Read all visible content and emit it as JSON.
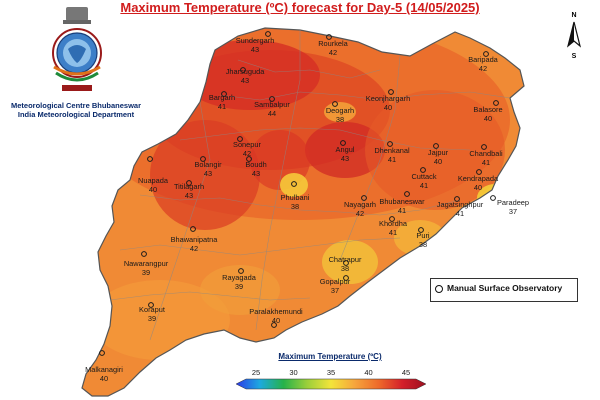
{
  "title": "Maximum Temperature (ºC) forecast for Day-5 (14/05/2025)",
  "organization": {
    "line1": "Meteorological Centre Bhubaneswar",
    "line2": "India Meteorological Department"
  },
  "north_arrow": {
    "n": "N",
    "s": "S"
  },
  "legend": {
    "observatory_label": "Manual Surface Observatory"
  },
  "colorbar": {
    "title": "Maximum Temperature (ºC)",
    "ticks": [
      "25",
      "30",
      "35",
      "40",
      "45"
    ],
    "colors": [
      "#2b39e8",
      "#1da9e0",
      "#26b24a",
      "#9ccf3a",
      "#f3e43a",
      "#f6a53c",
      "#ee6a2a",
      "#d4202a",
      "#9c1020"
    ]
  },
  "stations": [
    {
      "name": "Sundergarh",
      "temp": "43"
    },
    {
      "name": "Rourkela",
      "temp": "42"
    },
    {
      "name": "Jharsuguda",
      "temp": "43"
    },
    {
      "name": "Bargarh",
      "temp": "41"
    },
    {
      "name": "Sambalpur",
      "temp": "44"
    },
    {
      "name": "Deogarh",
      "temp": "38"
    },
    {
      "name": "Keonjhargarh",
      "temp": "40"
    },
    {
      "name": "Baripada",
      "temp": "42"
    },
    {
      "name": "Balasore",
      "temp": "40"
    },
    {
      "name": "Sonepur",
      "temp": "42"
    },
    {
      "name": "Angul",
      "temp": "43"
    },
    {
      "name": "Dhenkanal",
      "temp": "41"
    },
    {
      "name": "Jajpur",
      "temp": "40"
    },
    {
      "name": "Chandbali",
      "temp": "41"
    },
    {
      "name": "Bolangir",
      "temp": "43"
    },
    {
      "name": "Boudh",
      "temp": "43"
    },
    {
      "name": "Cuttack",
      "temp": "41"
    },
    {
      "name": "Kendrapada",
      "temp": "40"
    },
    {
      "name": "Nuapada",
      "temp": "40"
    },
    {
      "name": "Titilagarh",
      "temp": "43"
    },
    {
      "name": "Phulbani",
      "temp": "38"
    },
    {
      "name": "Nayagarh",
      "temp": "42"
    },
    {
      "name": "Bhubaneswar",
      "temp": "41"
    },
    {
      "name": "Jagatsinghpur",
      "temp": "41"
    },
    {
      "name": "Paradeep",
      "temp": "37"
    },
    {
      "name": "Khordha",
      "temp": "41"
    },
    {
      "name": "Puri",
      "temp": "38"
    },
    {
      "name": "Bhawanipatna",
      "temp": "42"
    },
    {
      "name": "Nawarangpur",
      "temp": "39"
    },
    {
      "name": "Rayagada",
      "temp": "39"
    },
    {
      "name": "Chatrapur",
      "temp": "38"
    },
    {
      "name": "Gopalpur",
      "temp": "37"
    },
    {
      "name": "Koraput",
      "temp": "39"
    },
    {
      "name": "Paralakhemundi",
      "temp": "40"
    },
    {
      "name": "Malkanagiri",
      "temp": "40"
    }
  ]
}
